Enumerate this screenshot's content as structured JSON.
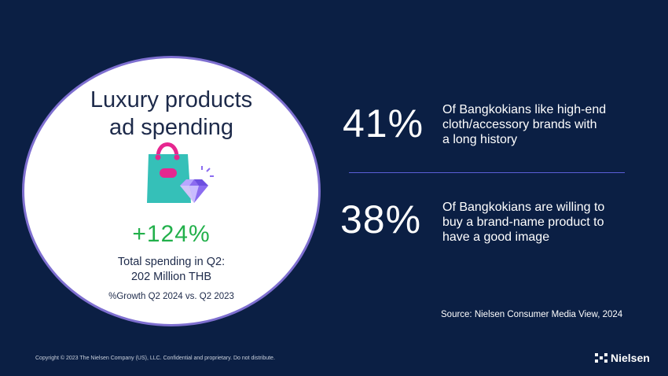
{
  "left_panel": {
    "title_line1": "Luxury products",
    "title_line2": "ad spending",
    "growth": "+124%",
    "spending_line1": "Total spending in Q2:",
    "spending_line2": "202 Million THB",
    "period": "%Growth Q2 2024 vs. Q2 2023"
  },
  "stats": [
    {
      "percent": "41%",
      "line1": "Of Bangkokians like high-end",
      "line2": "cloth/accessory brands with",
      "line3": "a long history"
    },
    {
      "percent": "38%",
      "line1": "Of Bangkokians are willing to",
      "line2": "buy a brand-name product to",
      "line3": "have a good image"
    }
  ],
  "source": "Source: Nielsen Consumer Media View, 2024",
  "footer": {
    "copyright": "Copyright © 2023 The Nielsen Company (US), LLC. Confidential and proprietary. Do not distribute.",
    "brand": "Nielsen"
  },
  "colors": {
    "background": "#0b1f44",
    "accent_green": "#22b04b",
    "circle_border": "#7e6fd0",
    "divider": "#5a5ed6"
  }
}
